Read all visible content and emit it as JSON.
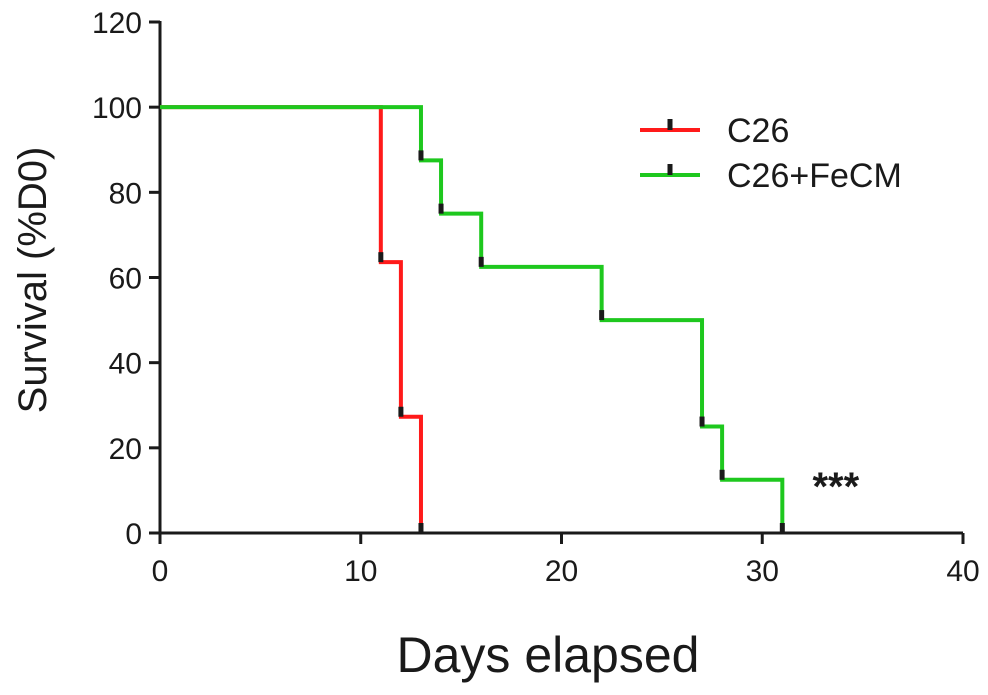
{
  "chart_data": {
    "type": "line",
    "subtype": "kaplan-meier-step",
    "title": "",
    "xlabel": "Days elapsed",
    "ylabel": "Survival  (%D0)",
    "xlim": [
      0,
      40
    ],
    "ylim": [
      0,
      120
    ],
    "x_ticks": [
      0,
      10,
      20,
      30,
      40
    ],
    "y_ticks": [
      0,
      20,
      40,
      60,
      80,
      100,
      120
    ],
    "grid": false,
    "legend_position": "top-right",
    "series": [
      {
        "name": "C26",
        "color": "#ff1a1a",
        "x": [
          0,
          11,
          12,
          13
        ],
        "y": [
          100,
          63.6,
          27.3,
          0
        ]
      },
      {
        "name": "C26+FeCM",
        "color": "#1ec81e",
        "x": [
          0,
          13,
          14,
          16,
          22,
          27,
          28,
          31
        ],
        "y": [
          100,
          87.5,
          75,
          62.5,
          50,
          25,
          12.5,
          0
        ]
      }
    ],
    "annotations": [
      {
        "text": "***",
        "x": 32.5,
        "y": 12
      }
    ]
  }
}
